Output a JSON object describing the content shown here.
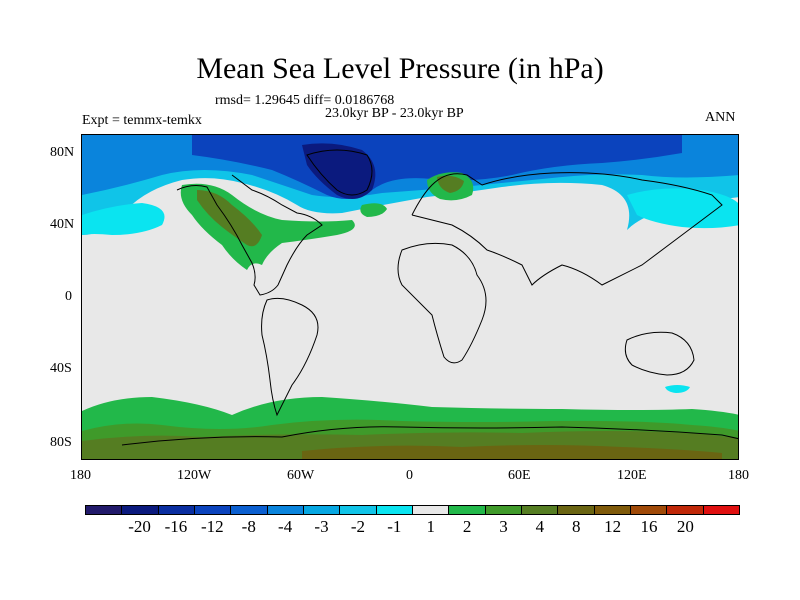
{
  "title": "Mean Sea Level Pressure (in hPa)",
  "stats": "rmsd= 1.29645 diff= 0.0186768",
  "period": "23.0kyr BP - 23.0kyr BP",
  "experiment": "Expt = temmx-temkx",
  "season": "ANN",
  "lat_labels": [
    "80N",
    "40N",
    "0",
    "40S",
    "80S"
  ],
  "lon_labels": [
    "180",
    "120W",
    "60W",
    "0",
    "60E",
    "120E",
    "180"
  ],
  "colorbar": {
    "colors": [
      "#221a6b",
      "#0b1a7e",
      "#0a2ea0",
      "#0b43bd",
      "#0b5fd0",
      "#0a84dc",
      "#06a7e2",
      "#10c4e8",
      "#0ae4f0",
      "#e8e8e8",
      "#22b84a",
      "#3f9a2a",
      "#557d22",
      "#6a6512",
      "#7f5a0a",
      "#a04a08",
      "#c02808",
      "#e01010"
    ],
    "labels": [
      "-20",
      "-16",
      "-12",
      "-8",
      "-4",
      "-3",
      "-2",
      "-1",
      "1",
      "2",
      "3",
      "4",
      "8",
      "12",
      "16",
      "20"
    ]
  }
}
